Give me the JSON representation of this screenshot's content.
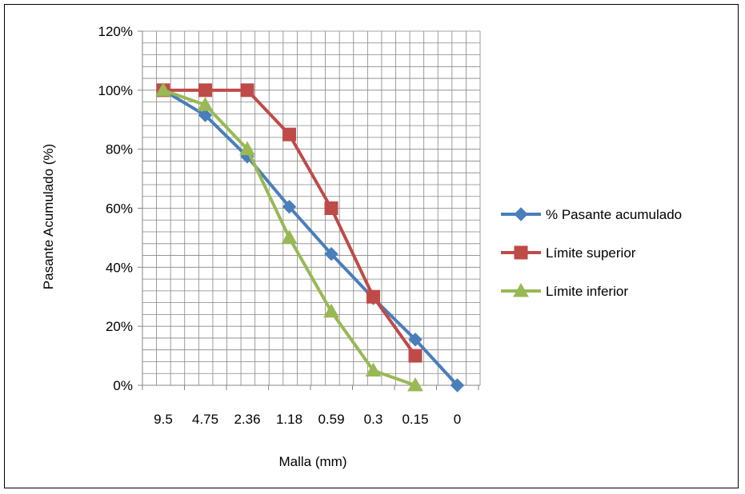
{
  "chart_data": {
    "type": "line",
    "categories": [
      "9.5",
      "4.75",
      "2.36",
      "1.18",
      "0.59",
      "0.3",
      "0.15",
      "0"
    ],
    "xlabel": "Malla (mm)",
    "ylabel": "Pasante Acumulado  (%)",
    "ylim": [
      0,
      120
    ],
    "yticks": [
      0,
      20,
      40,
      60,
      80,
      100,
      120
    ],
    "ytick_labels": [
      "0%",
      "20%",
      "40%",
      "60%",
      "80%",
      "100%",
      "120%"
    ],
    "grid": true,
    "legend": "right",
    "series": [
      {
        "name": "% Pasante acumulado",
        "color": "#4a7ebb",
        "marker": "diamond",
        "values": [
          100,
          91.5,
          77.5,
          60.5,
          44.5,
          29.5,
          15.5,
          0
        ]
      },
      {
        "name": "Límite superior",
        "color": "#be4b48",
        "marker": "square",
        "values": [
          100,
          100,
          100,
          85,
          60,
          30,
          10,
          null
        ]
      },
      {
        "name": "Límite inferior",
        "color": "#98b954",
        "marker": "triangle",
        "values": [
          100,
          95,
          80,
          50,
          25,
          5,
          0,
          null
        ]
      }
    ]
  }
}
